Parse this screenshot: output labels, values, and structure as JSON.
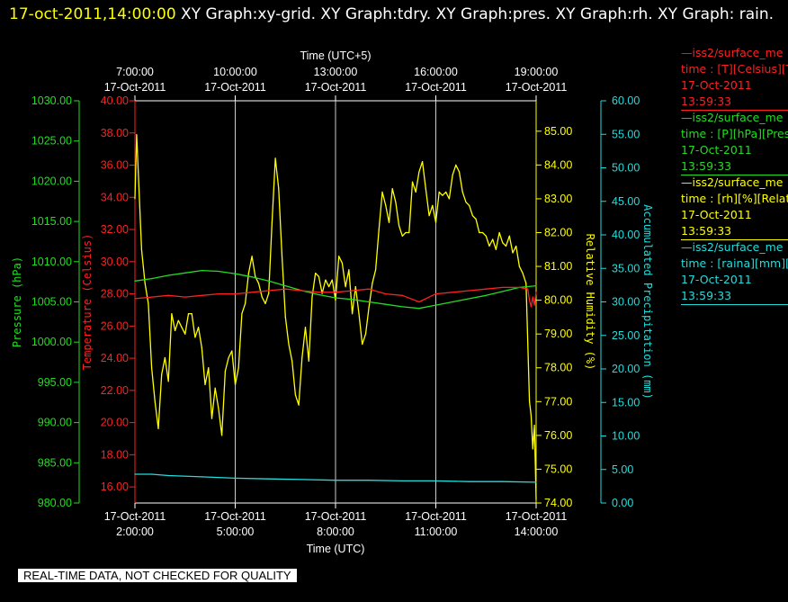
{
  "header": {
    "timestamp": "17-oct-2011,14:00:00",
    "graphs_text": " XY Graph:xy-grid.  XY Graph:tdry.  XY Graph:pres.  XY Graph:rh.  XY Graph: rain."
  },
  "banner": "REAL-TIME DATA, NOT CHECKED FOR QUALITY",
  "legend": [
    {
      "name": "—iss2/surface_me",
      "line2": "time : [T][Celsius][T",
      "date": "17-Oct-2011",
      "time": "13:59:33",
      "color": "#ff2020"
    },
    {
      "name": "—iss2/surface_me",
      "line2": "time : [P][hPa][Pres",
      "date": "17-Oct-2011",
      "time": "13:59:33",
      "color": "#22dd22"
    },
    {
      "name": "—iss2/surface_me",
      "line2": "time : [rh][%][Relati",
      "date": "17-Oct-2011",
      "time": "13:59:33",
      "color": "#ffff00"
    },
    {
      "name": "—iss2/surface_me",
      "line2": "time : [raina][mm][A",
      "date": "17-Oct-2011",
      "time": "13:59:33",
      "color": "#22dddd"
    }
  ],
  "chart_data": {
    "type": "line",
    "grid": true,
    "x_bottom": {
      "label": "Time (UTC)",
      "ticks": [
        {
          "l1": "17-Oct-2011",
          "l2": "2:00:00"
        },
        {
          "l1": "17-Oct-2011",
          "l2": "5:00:00"
        },
        {
          "l1": "17-Oct-2011",
          "l2": "8:00:00"
        },
        {
          "l1": "17-Oct-2011",
          "l2": "11:00:00"
        },
        {
          "l1": "17-Oct-2011",
          "l2": "14:00:00"
        }
      ],
      "range_hours": [
        2,
        14
      ]
    },
    "x_top": {
      "label": "Time (UTC+5)",
      "ticks": [
        {
          "l1": "7:00:00",
          "l2": "17-Oct-2011"
        },
        {
          "l1": "10:00:00",
          "l2": "17-Oct-2011"
        },
        {
          "l1": "13:00:00",
          "l2": "17-Oct-2011"
        },
        {
          "l1": "16:00:00",
          "l2": "17-Oct-2011"
        },
        {
          "l1": "19:00:00",
          "l2": "17-Oct-2011"
        }
      ]
    },
    "axes": {
      "pressure": {
        "label": "Pressure (hPa)",
        "min": 980,
        "max": 1030,
        "ticks": [
          "980.00",
          "985.00",
          "990.00",
          "995.00",
          "1000.00",
          "1005.00",
          "1010.00",
          "1015.00",
          "1020.00",
          "1025.00",
          "1030.00"
        ],
        "color": "#22dd22"
      },
      "temperature": {
        "label": "Temperature (Celsius)",
        "min": 15,
        "max": 40,
        "ticks": [
          "16.00",
          "18.00",
          "20.00",
          "22.00",
          "24.00",
          "26.00",
          "28.00",
          "30.00",
          "32.00",
          "34.00",
          "36.00",
          "38.00",
          "40.00"
        ],
        "color": "#ff2020"
      },
      "rh": {
        "label": "Relative Humidity (%)",
        "min": 74,
        "max": 85.9,
        "ticks": [
          "74.00",
          "75.00",
          "76.00",
          "77.00",
          "78.00",
          "79.00",
          "80.00",
          "81.00",
          "82.00",
          "83.00",
          "84.00",
          "85.00"
        ],
        "color": "#ffff00"
      },
      "rain": {
        "label": "Accumulated Precipitation (mm)",
        "min": 0,
        "max": 60,
        "ticks": [
          "0.00",
          "5.00",
          "10.00",
          "15.00",
          "20.00",
          "25.00",
          "30.00",
          "35.00",
          "40.00",
          "45.00",
          "50.00",
          "55.00",
          "60.00"
        ],
        "color": "#22dddd"
      }
    },
    "series": [
      {
        "name": "iss2/surface_met time : [rh][%][Relative Humidity]",
        "axis": "rh",
        "color": "#ffff00",
        "x": [
          2.0,
          2.05,
          2.1,
          2.2,
          2.3,
          2.4,
          2.5,
          2.6,
          2.7,
          2.8,
          2.9,
          3.0,
          3.1,
          3.2,
          3.3,
          3.4,
          3.5,
          3.6,
          3.7,
          3.8,
          3.9,
          4.0,
          4.1,
          4.2,
          4.3,
          4.4,
          4.5,
          4.6,
          4.7,
          4.8,
          4.9,
          5.0,
          5.1,
          5.2,
          5.3,
          5.4,
          5.5,
          5.6,
          5.7,
          5.8,
          5.9,
          6.0,
          6.1,
          6.2,
          6.3,
          6.4,
          6.5,
          6.6,
          6.7,
          6.8,
          6.9,
          7.0,
          7.1,
          7.2,
          7.3,
          7.4,
          7.5,
          7.6,
          7.7,
          7.8,
          7.9,
          8.0,
          8.1,
          8.2,
          8.3,
          8.4,
          8.5,
          8.6,
          8.7,
          8.8,
          8.9,
          9.0,
          9.1,
          9.2,
          9.3,
          9.4,
          9.5,
          9.6,
          9.7,
          9.8,
          9.9,
          10.0,
          10.1,
          10.2,
          10.3,
          10.4,
          10.5,
          10.6,
          10.7,
          10.8,
          10.9,
          11.0,
          11.1,
          11.2,
          11.3,
          11.4,
          11.5,
          11.6,
          11.7,
          11.8,
          11.9,
          12.0,
          12.1,
          12.2,
          12.3,
          12.4,
          12.5,
          12.6,
          12.7,
          12.8,
          12.9,
          13.0,
          13.1,
          13.2,
          13.3,
          13.4,
          13.5,
          13.6,
          13.7,
          13.8,
          13.85,
          13.9,
          13.95,
          14.0
        ],
        "y": [
          83.0,
          84.9,
          83.8,
          81.5,
          80.5,
          79.9,
          78.0,
          77.0,
          76.2,
          77.8,
          78.3,
          77.6,
          79.6,
          79.1,
          79.4,
          79.2,
          79.0,
          79.6,
          79.6,
          78.9,
          79.2,
          78.6,
          77.5,
          78.0,
          76.5,
          77.4,
          76.8,
          76.0,
          77.9,
          78.3,
          78.5,
          77.5,
          78.0,
          79.6,
          79.9,
          80.8,
          81.3,
          80.7,
          80.5,
          80.1,
          79.9,
          80.2,
          82.3,
          84.2,
          83.3,
          81.3,
          79.5,
          78.7,
          78.2,
          77.2,
          76.9,
          78.3,
          79.2,
          78.2,
          80.1,
          80.8,
          80.7,
          80.2,
          80.6,
          80.4,
          80.6,
          80.0,
          81.3,
          81.1,
          80.4,
          80.9,
          79.6,
          80.4,
          79.6,
          78.7,
          79.0,
          79.8,
          80.5,
          80.9,
          82.1,
          83.2,
          82.8,
          82.3,
          83.3,
          82.9,
          82.2,
          81.9,
          82.0,
          82.0,
          83.5,
          83.2,
          83.8,
          84.1,
          83.3,
          82.5,
          82.8,
          82.3,
          83.2,
          83.1,
          83.2,
          83.0,
          83.7,
          84.0,
          83.8,
          83.2,
          82.9,
          82.8,
          82.5,
          82.4,
          82.0,
          82.0,
          81.9,
          81.6,
          81.8,
          81.5,
          82.0,
          81.7,
          81.6,
          81.9,
          81.4,
          81.6,
          81.0,
          80.8,
          80.5,
          77.0,
          76.6,
          75.6,
          76.3,
          74.1
        ]
      },
      {
        "name": "iss2/surface_met time : [P][hPa][Pressure]",
        "axis": "pressure",
        "color": "#22dd22",
        "x": [
          2.0,
          2.5,
          3.0,
          3.5,
          4.0,
          4.5,
          5.0,
          5.5,
          6.0,
          6.5,
          7.0,
          7.5,
          8.0,
          8.5,
          9.0,
          9.5,
          10.0,
          10.5,
          11.0,
          11.5,
          12.0,
          12.5,
          13.0,
          13.5,
          14.0
        ],
        "y": [
          1007.6,
          1007.9,
          1008.3,
          1008.6,
          1008.9,
          1008.8,
          1008.5,
          1008.1,
          1007.6,
          1007.0,
          1006.4,
          1005.9,
          1005.5,
          1005.3,
          1005.0,
          1004.7,
          1004.4,
          1004.2,
          1004.6,
          1005.0,
          1005.4,
          1005.8,
          1006.3,
          1006.8,
          1007.0
        ]
      },
      {
        "name": "iss2/surface_met time : [T][Celsius][Temperature]",
        "axis": "temperature",
        "color": "#ff2020",
        "x": [
          2.0,
          2.5,
          3.0,
          3.5,
          4.0,
          4.5,
          5.0,
          5.5,
          6.0,
          6.5,
          7.0,
          7.5,
          8.0,
          8.5,
          9.0,
          9.5,
          10.0,
          10.5,
          11.0,
          11.5,
          12.0,
          12.5,
          13.0,
          13.5,
          13.75,
          13.8,
          13.85,
          13.9,
          13.95,
          14.0
        ],
        "y": [
          27.7,
          27.8,
          27.9,
          27.8,
          27.9,
          28.0,
          28.0,
          28.1,
          28.2,
          28.3,
          28.2,
          28.1,
          28.1,
          28.2,
          28.3,
          28.0,
          27.9,
          27.5,
          28.0,
          28.1,
          28.2,
          28.3,
          28.4,
          28.4,
          28.3,
          27.6,
          27.2,
          27.8,
          27.3,
          28.1
        ]
      },
      {
        "name": "iss2/surface_met time : [raina][mm][Accumulated Precipitation]",
        "axis": "rain",
        "color": "#22dddd",
        "x": [
          2.0,
          2.5,
          3.0,
          4.0,
          5.0,
          6.0,
          7.0,
          8.0,
          9.0,
          10.0,
          11.0,
          12.0,
          13.0,
          14.0
        ],
        "y": [
          4.3,
          4.3,
          4.1,
          3.9,
          3.7,
          3.6,
          3.5,
          3.4,
          3.4,
          3.3,
          3.3,
          3.2,
          3.2,
          3.1
        ]
      }
    ]
  }
}
